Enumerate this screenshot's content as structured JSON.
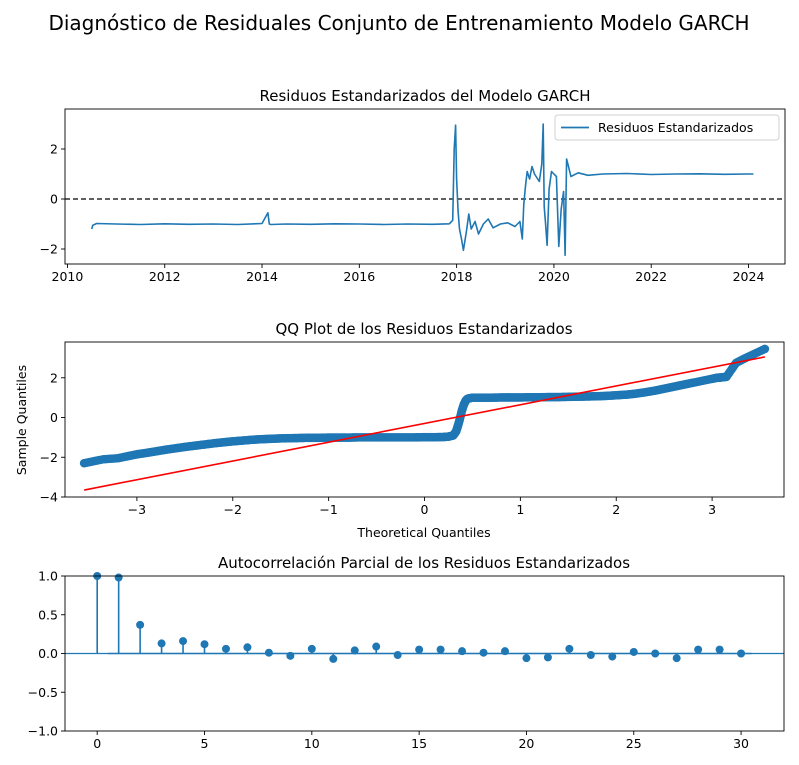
{
  "figure": {
    "suptitle": "Diagnóstico de Residuales Conjunto de Entrenamiento Modelo GARCH"
  },
  "colors": {
    "series": "#1f77b4",
    "fit_line": "#ff0000",
    "zero_line": "#000000",
    "ci_band": "#cfe0ef"
  },
  "chart_data": [
    {
      "type": "line",
      "title": "Residuos Estandarizados del Modelo GARCH",
      "xlabel": "",
      "ylabel": "",
      "xlim": [
        2009.95,
        2024.75
      ],
      "ylim": [
        -2.6,
        3.6
      ],
      "x_ticks": [
        2010,
        2012,
        2014,
        2016,
        2018,
        2020,
        2022,
        2024
      ],
      "y_ticks": [
        -2,
        0,
        2
      ],
      "reference_line": {
        "y": 0,
        "style": "dashed"
      },
      "legend": {
        "position": "top-right",
        "entries": [
          "Residuos Estandarizados"
        ]
      },
      "series": [
        {
          "name": "Residuos Estandarizados",
          "x": [
            2010.5,
            2010.52,
            2010.6,
            2011.0,
            2011.5,
            2012.0,
            2012.5,
            2013.0,
            2013.5,
            2014.0,
            2014.12,
            2014.15,
            2014.18,
            2014.5,
            2015.0,
            2015.5,
            2016.0,
            2016.5,
            2017.0,
            2017.5,
            2017.85,
            2017.92,
            2017.95,
            2017.98,
            2018.0,
            2018.03,
            2018.06,
            2018.1,
            2018.14,
            2018.2,
            2018.25,
            2018.3,
            2018.38,
            2018.45,
            2018.55,
            2018.65,
            2018.75,
            2018.9,
            2019.05,
            2019.2,
            2019.3,
            2019.35,
            2019.38,
            2019.42,
            2019.45,
            2019.5,
            2019.55,
            2019.6,
            2019.7,
            2019.75,
            2019.78,
            2019.8,
            2019.83,
            2019.86,
            2019.9,
            2019.95,
            2020.0,
            2020.05,
            2020.1,
            2020.15,
            2020.2,
            2020.23,
            2020.26,
            2020.3,
            2020.35,
            2020.5,
            2020.7,
            2021.0,
            2021.5,
            2022.0,
            2022.5,
            2023.0,
            2023.5,
            2024.0,
            2024.1
          ],
          "values": [
            -1.2,
            -1.05,
            -0.98,
            -1.0,
            -1.02,
            -0.99,
            -1.01,
            -1.0,
            -1.02,
            -0.98,
            -0.55,
            -1.0,
            -1.02,
            -1.0,
            -1.01,
            -0.99,
            -1.0,
            -1.02,
            -1.0,
            -1.01,
            -0.99,
            -0.85,
            2.0,
            2.95,
            0.8,
            -0.5,
            -1.2,
            -1.6,
            -2.05,
            -1.3,
            -0.6,
            -1.2,
            -0.9,
            -1.4,
            -1.0,
            -0.8,
            -1.15,
            -1.0,
            -0.95,
            -1.1,
            -0.9,
            -1.6,
            -0.2,
            0.6,
            1.1,
            0.8,
            1.3,
            1.0,
            0.7,
            1.4,
            3.0,
            -0.3,
            -1.0,
            -1.85,
            0.4,
            1.1,
            1.0,
            0.9,
            -1.9,
            -0.4,
            0.3,
            -2.25,
            1.6,
            1.3,
            0.9,
            1.05,
            0.95,
            1.0,
            1.02,
            0.98,
            1.0,
            1.01,
            0.99,
            1.0,
            1.0
          ]
        }
      ]
    },
    {
      "type": "scatter",
      "title": "QQ Plot de los Residuos Estandarizados",
      "xlabel": "Theoretical Quantiles",
      "ylabel": "Sample Quantiles",
      "xlim": [
        -3.75,
        3.75
      ],
      "ylim": [
        -4.0,
        3.8
      ],
      "x_ticks": [
        -3,
        -2,
        -1,
        0,
        1,
        2,
        3
      ],
      "y_ticks": [
        -4,
        -2,
        0,
        2
      ],
      "fit_line": {
        "x": [
          -3.55,
          3.55
        ],
        "y": [
          -3.65,
          3.05
        ]
      },
      "points": {
        "x": [
          -3.55,
          -3.35,
          -3.2,
          -3.1,
          -3.0,
          -2.9,
          -2.8,
          -2.7,
          -2.6,
          -2.5,
          -2.4,
          -2.3,
          -2.2,
          -2.1,
          -2.0,
          -1.9,
          -1.8,
          -1.7,
          -1.6,
          -1.5,
          -1.4,
          -1.3,
          -1.2,
          -1.1,
          -1.0,
          -0.9,
          -0.8,
          -0.7,
          -0.6,
          -0.5,
          -0.4,
          -0.3,
          -0.2,
          -0.1,
          0.0,
          0.1,
          0.2,
          0.25,
          0.3,
          0.33,
          0.35,
          0.37,
          0.39,
          0.41,
          0.43,
          0.45,
          0.5,
          0.6,
          0.7,
          0.8,
          0.9,
          1.0,
          1.1,
          1.2,
          1.3,
          1.4,
          1.5,
          1.6,
          1.7,
          1.8,
          1.9,
          2.0,
          2.1,
          2.2,
          2.3,
          2.4,
          2.5,
          2.6,
          2.7,
          2.8,
          2.9,
          3.0,
          3.05,
          3.1,
          3.15,
          3.25,
          3.35,
          3.55
        ],
        "y": [
          -2.3,
          -2.1,
          -2.05,
          -1.95,
          -1.85,
          -1.78,
          -1.7,
          -1.62,
          -1.55,
          -1.48,
          -1.42,
          -1.36,
          -1.3,
          -1.25,
          -1.2,
          -1.16,
          -1.12,
          -1.09,
          -1.07,
          -1.05,
          -1.04,
          -1.03,
          -1.02,
          -1.02,
          -1.01,
          -1.01,
          -1.01,
          -1.0,
          -1.0,
          -1.0,
          -1.0,
          -1.0,
          -1.0,
          -1.0,
          -0.99,
          -0.99,
          -0.98,
          -0.96,
          -0.9,
          -0.7,
          -0.4,
          -0.05,
          0.35,
          0.65,
          0.85,
          0.95,
          1.0,
          1.0,
          1.0,
          1.01,
          1.01,
          1.01,
          1.02,
          1.02,
          1.03,
          1.03,
          1.04,
          1.05,
          1.06,
          1.07,
          1.09,
          1.12,
          1.15,
          1.2,
          1.27,
          1.35,
          1.45,
          1.55,
          1.65,
          1.75,
          1.85,
          1.95,
          2.0,
          2.02,
          2.05,
          2.75,
          3.0,
          3.45
        ]
      }
    },
    {
      "type": "stem",
      "title": "Autocorrelación Parcial de los Residuos Estandarizados",
      "xlabel": "",
      "ylabel": "",
      "xlim": [
        -1.5,
        32
      ],
      "ylim": [
        -1.0,
        1.0
      ],
      "x_ticks": [
        0,
        5,
        10,
        15,
        20,
        25,
        30
      ],
      "y_ticks": [
        -1.0,
        -0.5,
        0.0,
        0.5,
        1.0
      ],
      "confidence_band": 0.02,
      "lags": [
        0,
        1,
        2,
        3,
        4,
        5,
        6,
        7,
        8,
        9,
        10,
        11,
        12,
        13,
        14,
        15,
        16,
        17,
        18,
        19,
        20,
        21,
        22,
        23,
        24,
        25,
        26,
        27,
        28,
        29,
        30
      ],
      "values": [
        1.0,
        0.98,
        0.37,
        0.13,
        0.16,
        0.12,
        0.06,
        0.08,
        0.01,
        -0.03,
        0.06,
        -0.07,
        0.04,
        0.09,
        -0.02,
        0.05,
        0.05,
        0.03,
        0.01,
        0.03,
        -0.06,
        -0.05,
        0.06,
        -0.02,
        -0.04,
        0.02,
        0.0,
        -0.06,
        0.05,
        0.05,
        0.0
      ]
    }
  ]
}
